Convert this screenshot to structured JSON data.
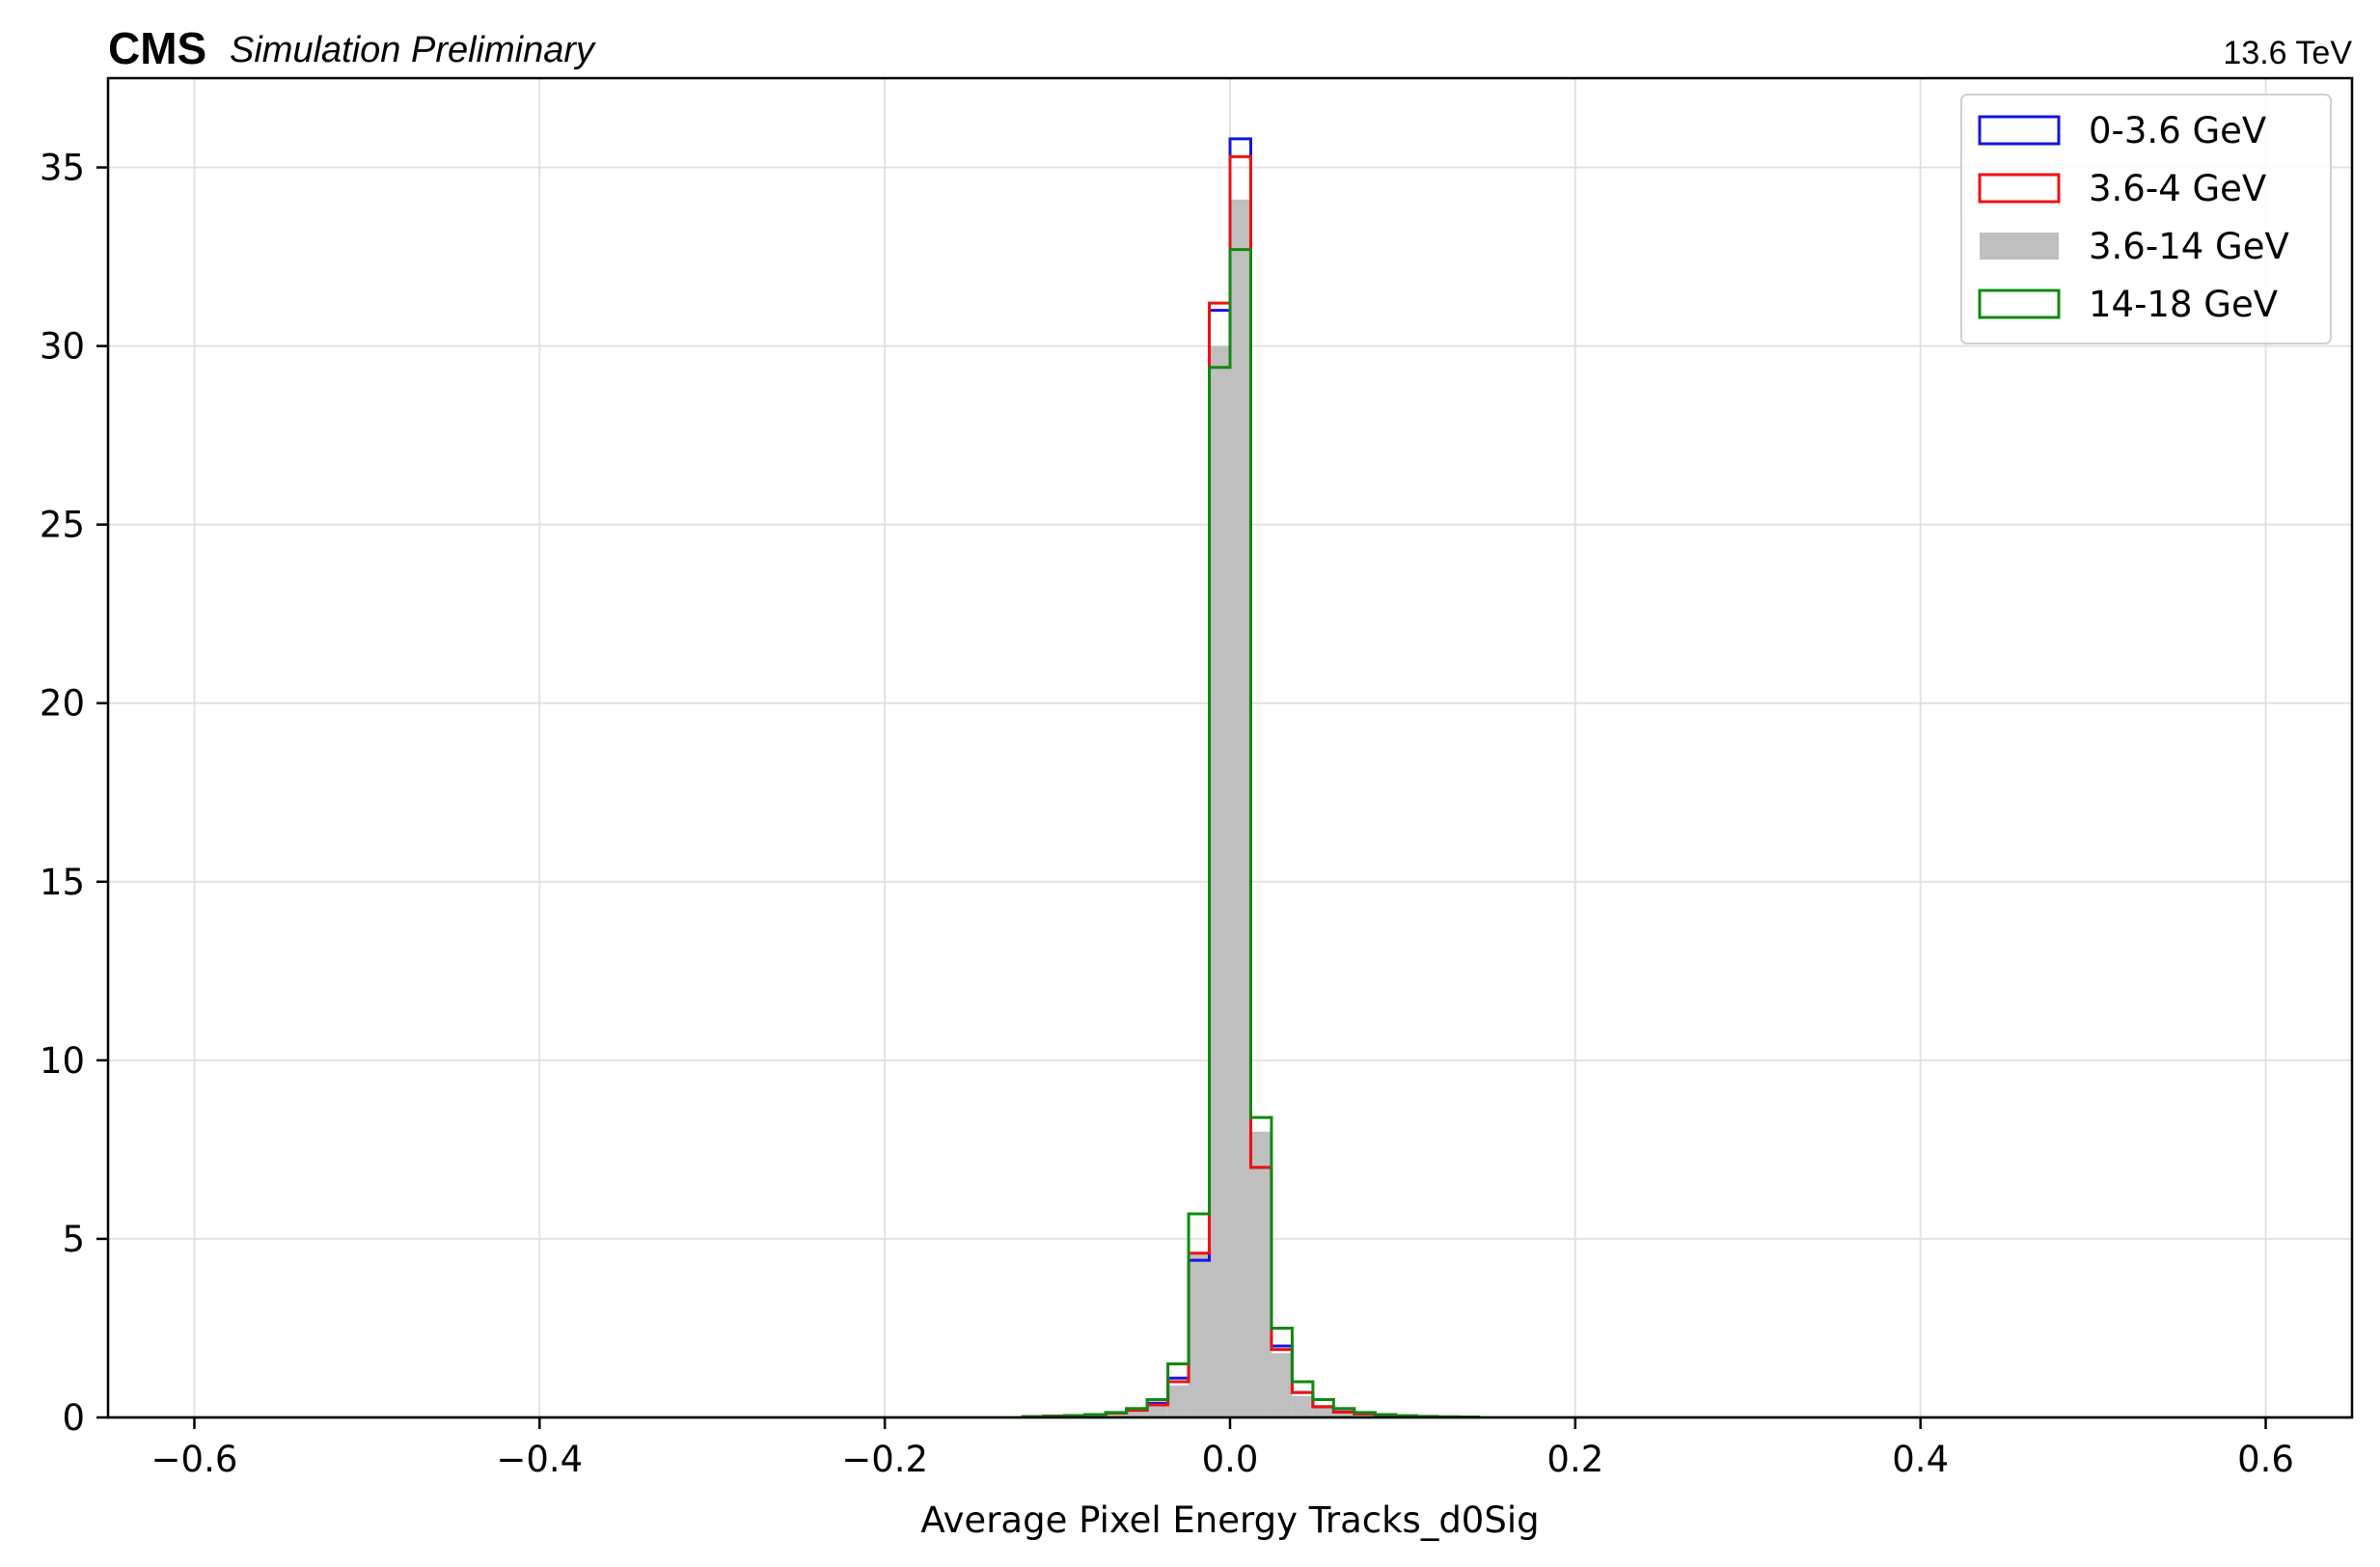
{
  "header": {
    "experiment": "CMS",
    "subtitle": "Simulation Preliminary",
    "energy": "13.6 TeV"
  },
  "chart_data": {
    "type": "histogram",
    "xlabel": "Average Pixel Energy Tracks_d0Sig",
    "ylabel": "",
    "xlim": [
      -0.65,
      0.65
    ],
    "ylim": [
      0,
      37.5
    ],
    "xticks": [
      -0.6,
      -0.4,
      -0.2,
      0.0,
      0.2,
      0.4,
      0.6
    ],
    "xtick_labels": [
      "−0.6",
      "−0.4",
      "−0.2",
      "0.0",
      "0.2",
      "0.4",
      "0.6"
    ],
    "yticks": [
      0,
      5,
      10,
      15,
      20,
      25,
      30,
      35
    ],
    "ytick_labels": [
      "0",
      "5",
      "10",
      "15",
      "20",
      "25",
      "30",
      "35"
    ],
    "grid": true,
    "legend_position": "upper right",
    "bin_edges": [
      -0.12,
      -0.108,
      -0.096,
      -0.084,
      -0.072,
      -0.06,
      -0.048,
      -0.036,
      -0.024,
      -0.012,
      0.0,
      0.012,
      0.024,
      0.036,
      0.048,
      0.06,
      0.072,
      0.084,
      0.096,
      0.108,
      0.12,
      0.132,
      0.144
    ],
    "series": [
      {
        "name": "3.6-14 GeV",
        "style": "filled",
        "color": "#bfbfbf",
        "values": [
          0.02,
          0.03,
          0.05,
          0.08,
          0.12,
          0.2,
          0.35,
          0.9,
          4.6,
          30.0,
          34.1,
          8.0,
          1.8,
          0.6,
          0.3,
          0.15,
          0.08,
          0.05,
          0.03,
          0.02,
          0.01,
          0.01
        ]
      },
      {
        "name": "0-3.6 GeV",
        "style": "step",
        "color": "#1515e0",
        "values": [
          0.02,
          0.03,
          0.05,
          0.08,
          0.12,
          0.22,
          0.4,
          1.1,
          4.4,
          31.0,
          35.8,
          7.0,
          2.0,
          0.7,
          0.3,
          0.16,
          0.1,
          0.06,
          0.03,
          0.02,
          0.01,
          0.01
        ]
      },
      {
        "name": "3.6-4 GeV",
        "style": "step",
        "color": "#ee1111",
        "values": [
          0.02,
          0.04,
          0.05,
          0.08,
          0.12,
          0.2,
          0.35,
          1.0,
          4.6,
          31.2,
          35.3,
          7.0,
          1.9,
          0.7,
          0.3,
          0.15,
          0.1,
          0.06,
          0.03,
          0.02,
          0.01,
          0.01
        ]
      },
      {
        "name": "14-18 GeV",
        "style": "step",
        "color": "#118811",
        "values": [
          0.02,
          0.03,
          0.05,
          0.08,
          0.14,
          0.25,
          0.5,
          1.5,
          5.7,
          29.4,
          32.7,
          8.4,
          2.5,
          1.0,
          0.5,
          0.25,
          0.14,
          0.08,
          0.05,
          0.03,
          0.02,
          0.01
        ]
      }
    ],
    "legend_order": [
      "0-3.6 GeV",
      "3.6-4 GeV",
      "3.6-14 GeV",
      "14-18 GeV"
    ]
  }
}
